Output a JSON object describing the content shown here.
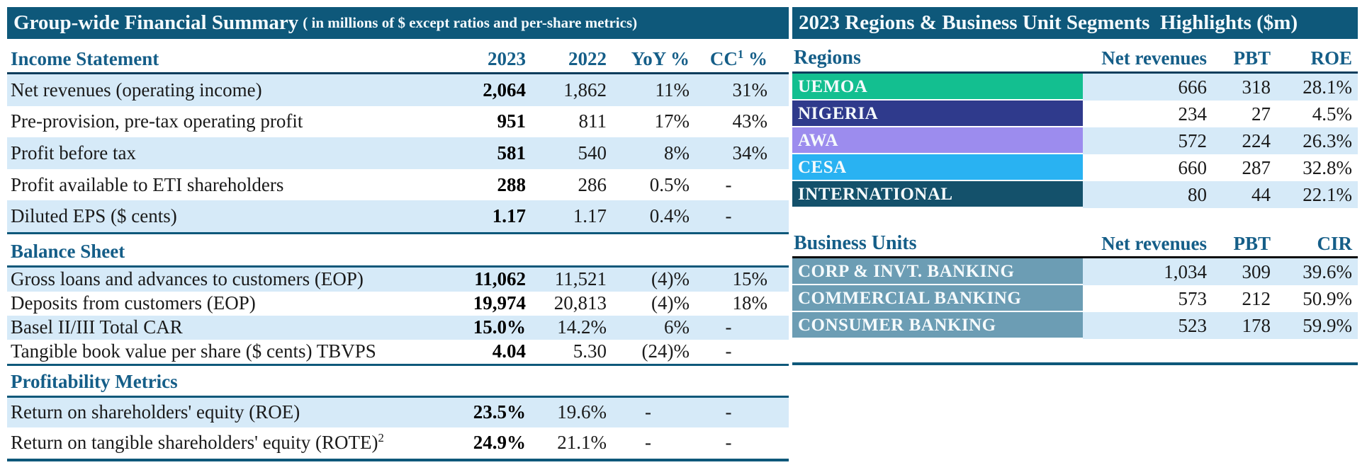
{
  "colors": {
    "header_bar": "#0E587A",
    "heading_text": "#155E88",
    "stripe": "#D6EAF8",
    "rule_teal": "#0E587A",
    "rule_dark": "#0A3D5C",
    "rule_black": "#0b0b0b",
    "business_bar": "#6C9DB4"
  },
  "left": {
    "title": "Group-wide Financial Summary",
    "title_note": "( in millions of $ except ratios and per-share metrics)",
    "income": {
      "heading": "Income Statement",
      "columns": {
        "c2023": "2023",
        "c2022": "2022",
        "cyoy": "YoY %",
        "ccc_pre": "CC",
        "ccc_sup": "1",
        "ccc_post": " %"
      },
      "rows": [
        {
          "label": "Net revenues (operating income)",
          "v2023": "2,064",
          "v2022": "1,862",
          "yoy": "11%",
          "cc": "31%"
        },
        {
          "label": "Pre-provision, pre-tax operating profit",
          "v2023": "951",
          "v2022": "811",
          "yoy": "17%",
          "cc": "43%"
        },
        {
          "label": "Profit before tax",
          "v2023": "581",
          "v2022": "540",
          "yoy": "8%",
          "cc": "34%"
        },
        {
          "label": "Profit available to ETI shareholders",
          "v2023": "288",
          "v2022": "286",
          "yoy": "0.5%",
          "cc": "-"
        },
        {
          "label": "Diluted EPS ($ cents)",
          "v2023": "1.17",
          "v2022": "1.17",
          "yoy": "0.4%",
          "cc": "-"
        }
      ]
    },
    "balance": {
      "heading": "Balance Sheet",
      "rows": [
        {
          "label": "Gross loans and advances to customers (EOP)",
          "v2023": "11,062",
          "v2022": "11,521",
          "yoy": "(4)%",
          "cc": "15%"
        },
        {
          "label": "Deposits from customers (EOP)",
          "v2023": "19,974",
          "v2022": "20,813",
          "yoy": "(4)%",
          "cc": "18%"
        },
        {
          "label": "Basel II/III Total CAR",
          "v2023": "15.0%",
          "v2022": "14.2%",
          "yoy": "6%",
          "cc": "-"
        },
        {
          "label": "Tangible book value per share ($ cents) TBVPS",
          "v2023": "4.04",
          "v2022": "5.30",
          "yoy": "(24)%",
          "cc": "-"
        }
      ]
    },
    "profitability": {
      "heading": "Profitability Metrics",
      "rows": [
        {
          "label": "Return on shareholders' equity (ROE)",
          "label_sup": "",
          "v2023": "23.5%",
          "v2022": "19.6%",
          "yoy": "-",
          "cc": "-"
        },
        {
          "label": "Return on tangible shareholders' equity (ROTE)",
          "label_sup": "2",
          "v2023": "24.9%",
          "v2022": "21.1%",
          "yoy": "-",
          "cc": "-"
        }
      ]
    }
  },
  "right": {
    "title": "2023 Regions & Business Unit Segments  Highlights ($m)",
    "regions": {
      "heading": "Regions",
      "columns": {
        "c1": "Net revenues",
        "c2": "PBT",
        "c3": "ROE"
      },
      "rows": [
        {
          "label": "UEMOA",
          "color": "#13BF90",
          "net": "666",
          "pbt": "318",
          "r3": "28.1%"
        },
        {
          "label": "NIGERIA",
          "color": "#2F3A8C",
          "net": "234",
          "pbt": "27",
          "r3": "4.5%"
        },
        {
          "label": "AWA",
          "color": "#9C8CEE",
          "net": "572",
          "pbt": "224",
          "r3": "26.3%"
        },
        {
          "label": "CESA",
          "color": "#29B2F2",
          "net": "660",
          "pbt": "287",
          "r3": "32.8%"
        },
        {
          "label": "INTERNATIONAL",
          "color": "#14516B",
          "net": "80",
          "pbt": "44",
          "r3": "22.1%"
        }
      ]
    },
    "business": {
      "heading": "Business Units",
      "columns": {
        "c1": "Net revenues",
        "c2": "PBT",
        "c3": "CIR"
      },
      "bar_color": "#6C9DB4",
      "rows": [
        {
          "label": "CORP & INVT. BANKING",
          "net": "1,034",
          "pbt": "309",
          "r3": "39.6%"
        },
        {
          "label": "COMMERCIAL BANKING",
          "net": "573",
          "pbt": "212",
          "r3": "50.9%"
        },
        {
          "label": "CONSUMER BANKING",
          "net": "523",
          "pbt": "178",
          "r3": "59.9%"
        }
      ]
    }
  }
}
